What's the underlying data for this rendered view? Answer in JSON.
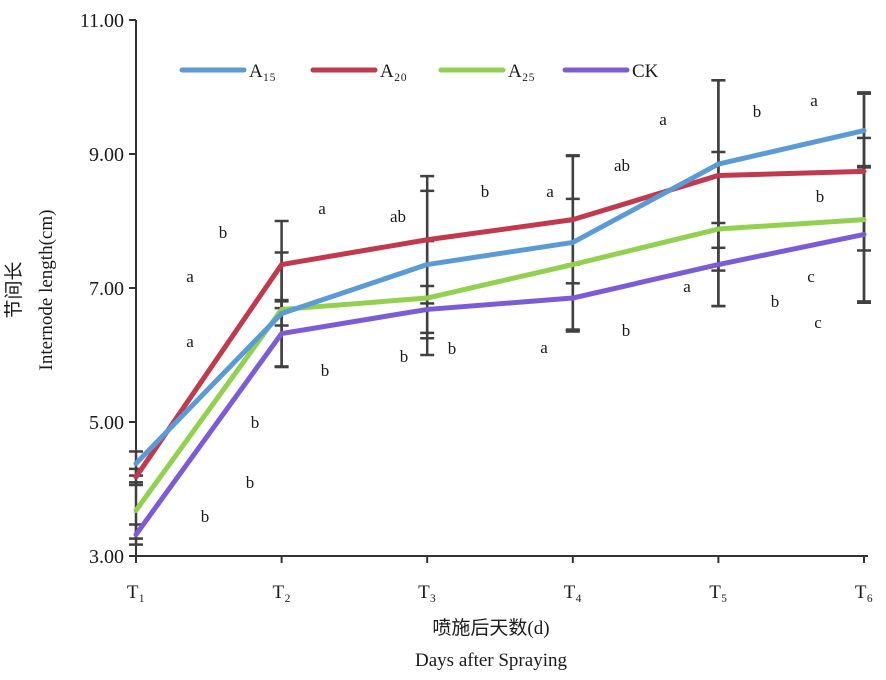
{
  "chart_data": {
    "type": "line",
    "categories": [
      "T₁",
      "T₂",
      "T₃",
      "T₄",
      "T₅",
      "T₆"
    ],
    "ylim": [
      3.0,
      11.0
    ],
    "yticks": [
      "3.00",
      "5.00",
      "7.00",
      "9.00",
      "11.00"
    ],
    "ylabel_cn": "节间长",
    "ylabel": "Internode length(cm)",
    "xlabel_cn": "喷施后天数(d)",
    "xlabel": "Days after Spraying",
    "legend_position": "top",
    "series": [
      {
        "name": "A₁₅",
        "color": "#5b9bd5",
        "values": [
          4.38,
          6.62,
          7.35,
          7.68,
          8.85,
          9.35
        ],
        "err": [
          0.18,
          0.18,
          1.1,
          1.3,
          1.25,
          0.55
        ]
      },
      {
        "name": "A₂₀",
        "color": "#c0394d",
        "values": [
          4.18,
          7.35,
          7.72,
          8.02,
          8.68,
          8.74
        ],
        "err": [
          0.12,
          0.65,
          0.95,
          0.95,
          1.42,
          1.18
        ]
      },
      {
        "name": "A₂₅",
        "color": "#92d050",
        "values": [
          3.68,
          6.68,
          6.85,
          7.35,
          7.88,
          8.02
        ],
        "err": [
          0.42,
          0.85,
          0.85,
          0.98,
          1.15,
          1.22
        ]
      },
      {
        "name": "CK",
        "color": "#7c5cd6",
        "values": [
          3.32,
          6.32,
          6.68,
          6.85,
          7.35,
          7.8
        ],
        "err": [
          0.15,
          0.5,
          0.35,
          0.5,
          0.62,
          1.02
        ]
      }
    ],
    "annotations": [
      "b",
      "a",
      "a",
      "b",
      "b",
      "b",
      "b",
      "a",
      "ab",
      "b",
      "b",
      "b",
      "a",
      "a",
      "b",
      "ab",
      "a",
      "a",
      "b",
      "b",
      "a",
      "b",
      "c",
      "c"
    ]
  }
}
